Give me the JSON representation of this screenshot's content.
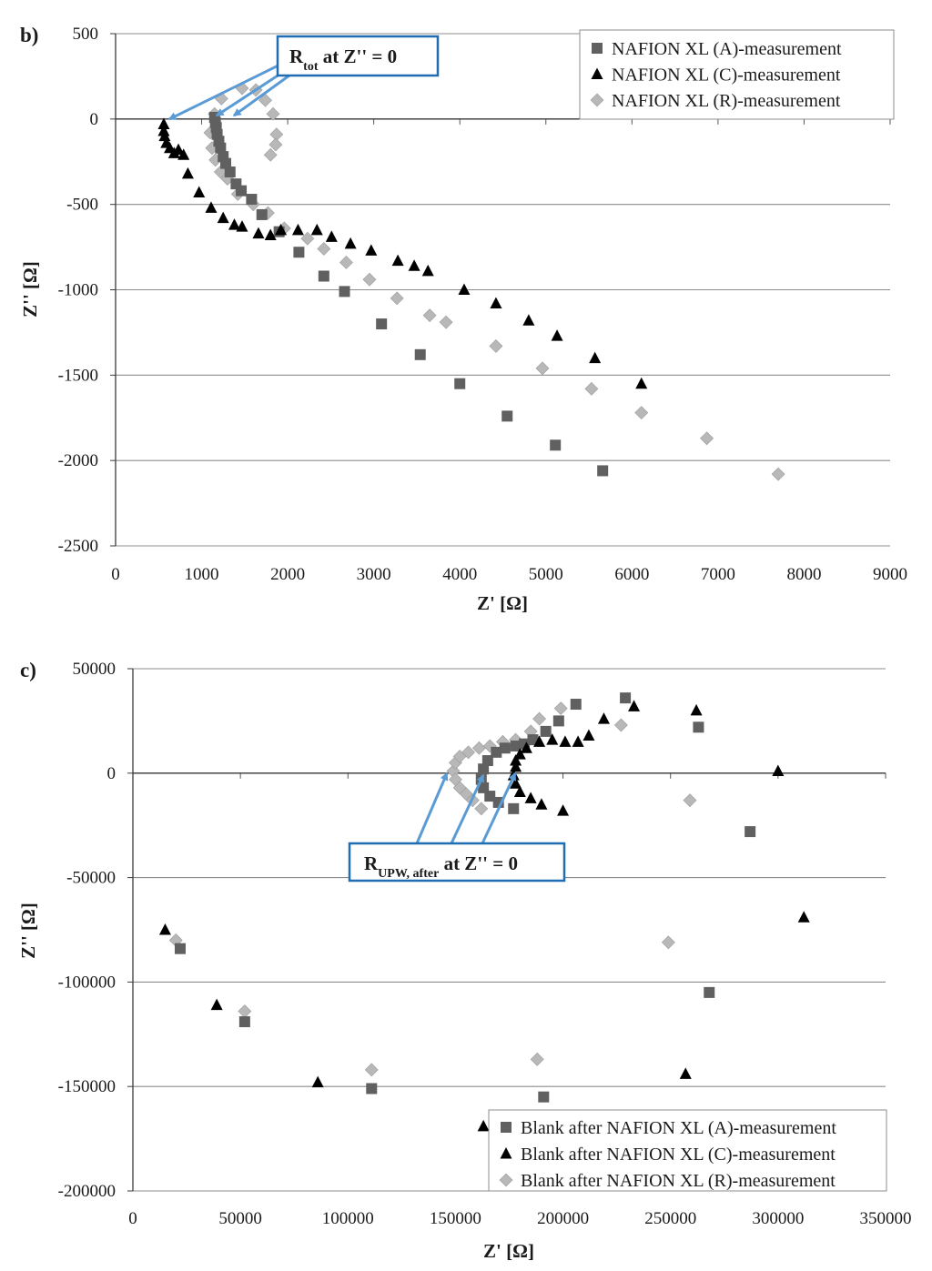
{
  "chart_data": [
    {
      "type": "scatter",
      "panel_label": "b)",
      "title": "",
      "xlabel": "Z' [Ω]",
      "ylabel": "Z'' [Ω]",
      "xlim": [
        0,
        9000
      ],
      "ylim": [
        -2500,
        500
      ],
      "xticks": [
        0,
        1000,
        2000,
        3000,
        4000,
        5000,
        6000,
        7000,
        8000,
        9000
      ],
      "yticks": [
        500,
        0,
        -500,
        -1000,
        -1500,
        -2000,
        -2500
      ],
      "grid": "horizontal",
      "legend_position": "top-right",
      "annotation": {
        "main": "R",
        "sub": "tot",
        "rest": " at Z'' = 0"
      },
      "series": [
        {
          "name": "NAFION XL (A)-measurement",
          "marker": "square",
          "color": "#606060",
          "points": [
            [
              1150,
              10
            ],
            [
              1160,
              -20
            ],
            [
              1170,
              -50
            ],
            [
              1180,
              -90
            ],
            [
              1200,
              -130
            ],
            [
              1220,
              -170
            ],
            [
              1250,
              -220
            ],
            [
              1280,
              -260
            ],
            [
              1330,
              -310
            ],
            [
              1400,
              -380
            ],
            [
              1460,
              -420
            ],
            [
              1580,
              -470
            ],
            [
              1700,
              -560
            ],
            [
              1900,
              -660
            ],
            [
              2130,
              -780
            ],
            [
              2420,
              -920
            ],
            [
              2660,
              -1010
            ],
            [
              3090,
              -1200
            ],
            [
              3540,
              -1380
            ],
            [
              4000,
              -1550
            ],
            [
              4550,
              -1740
            ],
            [
              5110,
              -1910
            ],
            [
              5660,
              -2060
            ]
          ]
        },
        {
          "name": "NAFION XL (C)-measurement",
          "marker": "triangle",
          "color": "#000000",
          "points": [
            [
              560,
              -30
            ],
            [
              560,
              -70
            ],
            [
              570,
              -100
            ],
            [
              590,
              -140
            ],
            [
              630,
              -170
            ],
            [
              680,
              -200
            ],
            [
              730,
              -180
            ],
            [
              790,
              -210
            ],
            [
              840,
              -320
            ],
            [
              970,
              -430
            ],
            [
              1110,
              -520
            ],
            [
              1250,
              -580
            ],
            [
              1380,
              -620
            ],
            [
              1470,
              -630
            ],
            [
              1660,
              -670
            ],
            [
              1800,
              -680
            ],
            [
              1920,
              -650
            ],
            [
              2120,
              -650
            ],
            [
              2340,
              -650
            ],
            [
              2510,
              -690
            ],
            [
              2730,
              -730
            ],
            [
              2970,
              -770
            ],
            [
              3280,
              -830
            ],
            [
              3470,
              -860
            ],
            [
              3630,
              -890
            ],
            [
              4050,
              -1000
            ],
            [
              4420,
              -1080
            ],
            [
              4800,
              -1180
            ],
            [
              5130,
              -1270
            ],
            [
              5570,
              -1400
            ],
            [
              6110,
              -1550
            ]
          ]
        },
        {
          "name": "NAFION XL (R)-measurement",
          "marker": "diamond",
          "color": "#b8b8b8",
          "points": [
            [
              1230,
              120
            ],
            [
              1470,
              180
            ],
            [
              1630,
              170
            ],
            [
              1740,
              110
            ],
            [
              1830,
              30
            ],
            [
              1870,
              -90
            ],
            [
              1860,
              -150
            ],
            [
              1800,
              -210
            ],
            [
              1150,
              30
            ],
            [
              1100,
              -80
            ],
            [
              1120,
              -170
            ],
            [
              1160,
              -240
            ],
            [
              1220,
              -310
            ],
            [
              1300,
              -350
            ],
            [
              1420,
              -440
            ],
            [
              1600,
              -500
            ],
            [
              1770,
              -550
            ],
            [
              1960,
              -640
            ],
            [
              2230,
              -700
            ],
            [
              2420,
              -760
            ],
            [
              2680,
              -840
            ],
            [
              2950,
              -940
            ],
            [
              3270,
              -1050
            ],
            [
              3650,
              -1150
            ],
            [
              3840,
              -1190
            ],
            [
              4420,
              -1330
            ],
            [
              4960,
              -1460
            ],
            [
              5530,
              -1580
            ],
            [
              6110,
              -1720
            ],
            [
              6870,
              -1870
            ],
            [
              7700,
              -2080
            ]
          ]
        }
      ]
    },
    {
      "type": "scatter",
      "panel_label": "c)",
      "title": "",
      "xlabel": "Z' [Ω]",
      "ylabel": "Z'' [Ω]",
      "xlim": [
        0,
        350000
      ],
      "ylim": [
        -200000,
        50000
      ],
      "xticks": [
        0,
        50000,
        100000,
        150000,
        200000,
        250000,
        300000,
        350000
      ],
      "yticks": [
        50000,
        0,
        -50000,
        -100000,
        -150000,
        -200000
      ],
      "grid": "horizontal",
      "legend_position": "bottom-right",
      "annotation": {
        "main": "R",
        "sub": "UPW, after",
        "rest": " at Z'' = 0"
      },
      "series": [
        {
          "name": "Blank after NAFION XL (A)-measurement",
          "marker": "square",
          "color": "#606060",
          "points": [
            [
              163000,
              2000
            ],
            [
              162000,
              -3000
            ],
            [
              163000,
              -7000
            ],
            [
              166000,
              -11000
            ],
            [
              170000,
              -14000
            ],
            [
              177000,
              -17000
            ],
            [
              165000,
              6000
            ],
            [
              169000,
              10000
            ],
            [
              173000,
              12000
            ],
            [
              178000,
              13000
            ],
            [
              182000,
              14000
            ],
            [
              186000,
              16000
            ],
            [
              192000,
              20000
            ],
            [
              198000,
              25000
            ],
            [
              206000,
              33000
            ],
            [
              229000,
              36000
            ],
            [
              263000,
              22000
            ],
            [
              287000,
              -28000
            ],
            [
              268000,
              -105000
            ],
            [
              191000,
              -155000
            ],
            [
              111000,
              -151000
            ],
            [
              52000,
              -119000
            ],
            [
              22000,
              -84000
            ]
          ]
        },
        {
          "name": "Blank after NAFION XL (C)-measurement",
          "marker": "triangle",
          "color": "#000000",
          "points": [
            [
              178000,
              3000
            ],
            [
              177000,
              -1000
            ],
            [
              178000,
              -5000
            ],
            [
              180000,
              -9000
            ],
            [
              185000,
              -12000
            ],
            [
              190000,
              -15000
            ],
            [
              200000,
              -18000
            ],
            [
              178000,
              6000
            ],
            [
              180000,
              9000
            ],
            [
              183000,
              12000
            ],
            [
              189000,
              15000
            ],
            [
              195000,
              16000
            ],
            [
              201000,
              15000
            ],
            [
              207000,
              15000
            ],
            [
              212000,
              18000
            ],
            [
              219000,
              26000
            ],
            [
              233000,
              32000
            ],
            [
              262000,
              30000
            ],
            [
              300000,
              1000
            ],
            [
              312000,
              -69000
            ],
            [
              257000,
              -144000
            ],
            [
              163000,
              -169000
            ],
            [
              86000,
              -148000
            ],
            [
              39000,
              -111000
            ],
            [
              15000,
              -75000
            ]
          ]
        },
        {
          "name": "Blank after NAFION XL (R)-measurement",
          "marker": "diamond",
          "color": "#b8b8b8",
          "points": [
            [
              149000,
              1000
            ],
            [
              150000,
              5000
            ],
            [
              152000,
              8000
            ],
            [
              156000,
              10000
            ],
            [
              161000,
              12000
            ],
            [
              166000,
              13000
            ],
            [
              172000,
              15000
            ],
            [
              178000,
              16000
            ],
            [
              185000,
              20000
            ],
            [
              189000,
              26000
            ],
            [
              199000,
              31000
            ],
            [
              227000,
              23000
            ],
            [
              259000,
              -13000
            ],
            [
              249000,
              -81000
            ],
            [
              188000,
              -137000
            ],
            [
              111000,
              -142000
            ],
            [
              52000,
              -114000
            ],
            [
              20000,
              -80000
            ],
            [
              150000,
              -3000
            ],
            [
              152000,
              -7000
            ],
            [
              155000,
              -10000
            ],
            [
              158000,
              -13000
            ],
            [
              162000,
              -17000
            ]
          ]
        }
      ]
    }
  ]
}
